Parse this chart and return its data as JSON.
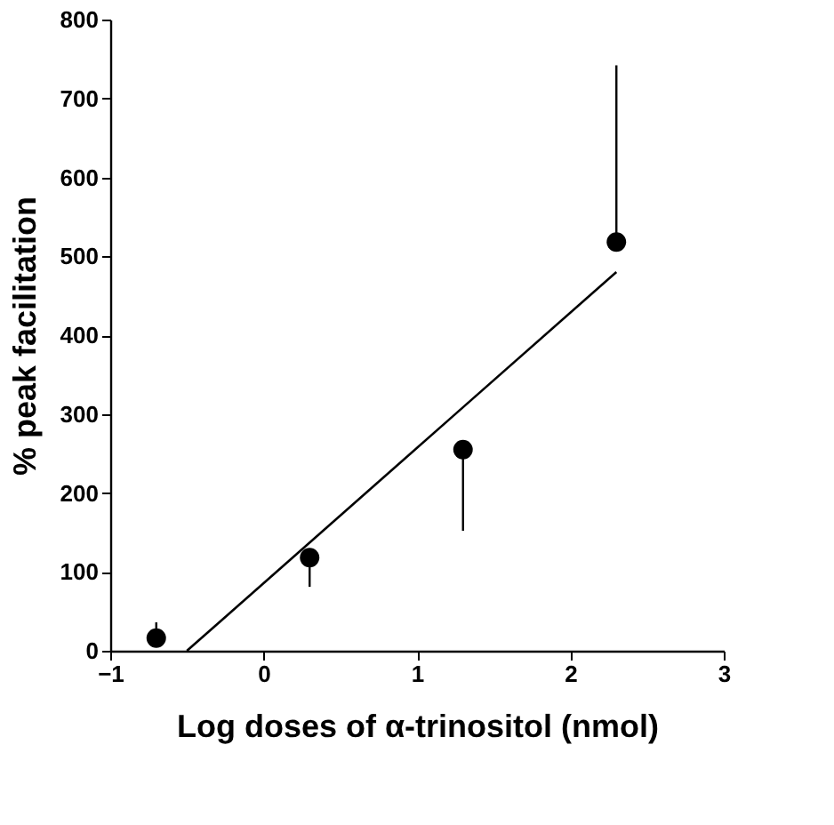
{
  "chart_data": {
    "type": "scatter",
    "xlabel": "Log doses of α-trinositol (nmol)",
    "ylabel": "% peak facilitation",
    "x": [
      -0.7,
      0.3,
      1.3,
      2.3
    ],
    "series": [
      {
        "color": "#000000",
        "values": [
          16,
          118,
          255,
          518
        ],
        "errors": [
          [
            16,
            36
          ],
          [
            81,
            118
          ],
          [
            152,
            255
          ],
          [
            518,
            742
          ]
        ],
        "marker": "circle"
      },
      {
        "type": "line",
        "color": "#000000",
        "x": [
          -0.5,
          2.3
        ],
        "values": [
          0,
          480
        ],
        "line_style": "solid"
      }
    ],
    "xlim": [
      -1,
      3
    ],
    "xticks": [
      -1,
      0,
      1,
      2,
      3
    ],
    "ylim": [
      0,
      800
    ],
    "yticks": [
      0,
      100,
      200,
      300,
      400,
      500,
      600,
      700,
      800
    ],
    "grid": false
  }
}
